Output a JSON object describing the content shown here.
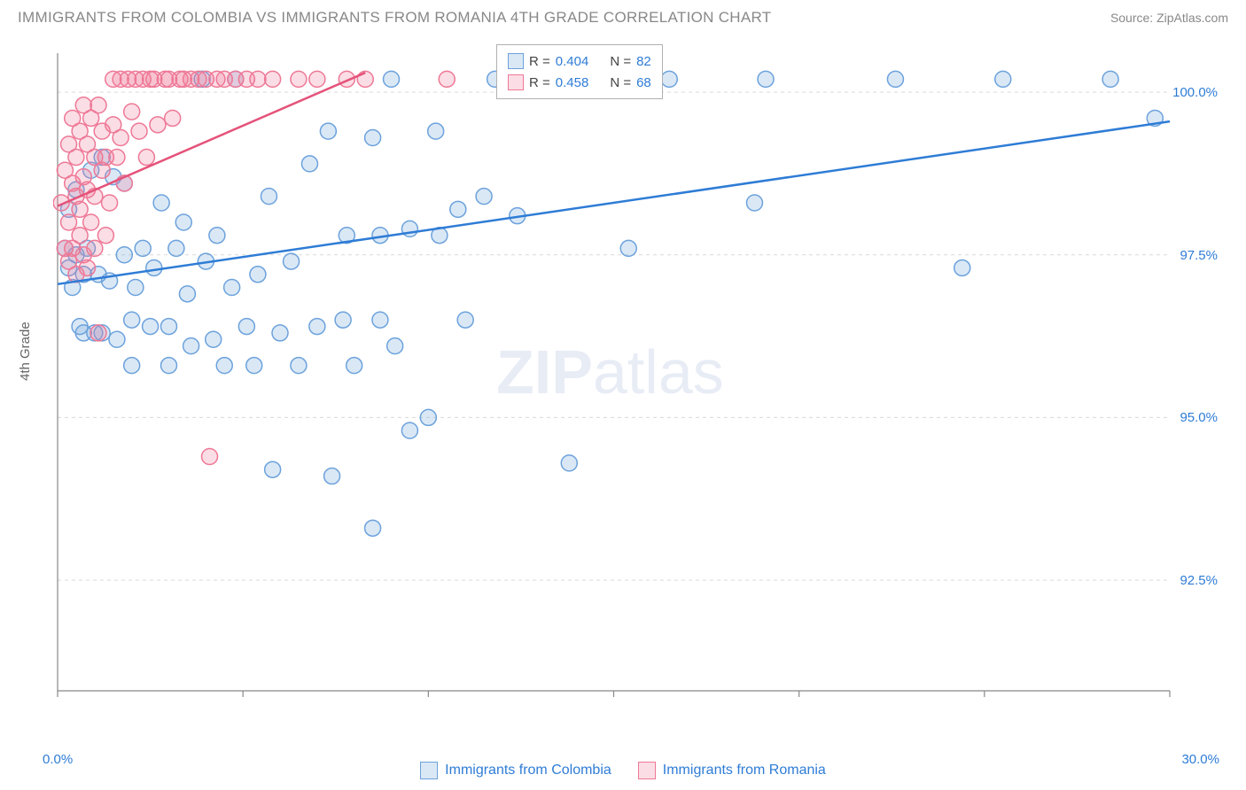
{
  "header": {
    "title": "IMMIGRANTS FROM COLOMBIA VS IMMIGRANTS FROM ROMANIA 4TH GRADE CORRELATION CHART",
    "source": "Source: ZipAtlas.com"
  },
  "chart": {
    "type": "scatter",
    "ylabel": "4th Grade",
    "xlim": [
      0,
      30
    ],
    "ylim": [
      90.8,
      100.6
    ],
    "x_axis_labels": {
      "start": "0.0%",
      "end": "30.0%"
    },
    "y_ticks": [
      {
        "v": 92.5,
        "label": "92.5%"
      },
      {
        "v": 95.0,
        "label": "95.0%"
      },
      {
        "v": 97.5,
        "label": "97.5%"
      },
      {
        "v": 100.0,
        "label": "100.0%"
      }
    ],
    "x_tick_positions": [
      0,
      5,
      10,
      15,
      20,
      25,
      30
    ],
    "grid_color": "#d9d9d9",
    "axis_color": "#888888",
    "background_color": "#ffffff",
    "marker_radius": 9,
    "marker_stroke_width": 1.5,
    "line_width": 2.5,
    "series": [
      {
        "name": "Immigrants from Colombia",
        "fill": "rgba(108,162,220,0.25)",
        "stroke": "#6ca2dc",
        "line_color": "#2e7cd6",
        "R": "0.404",
        "N": "82",
        "regression": {
          "x1": 0,
          "y1": 97.05,
          "x2": 30,
          "y2": 99.55
        },
        "points": [
          [
            0.2,
            97.6
          ],
          [
            0.3,
            98.2
          ],
          [
            0.3,
            97.3
          ],
          [
            0.4,
            97.0
          ],
          [
            0.5,
            98.5
          ],
          [
            0.5,
            97.5
          ],
          [
            0.6,
            96.4
          ],
          [
            0.7,
            97.2
          ],
          [
            0.7,
            96.3
          ],
          [
            0.8,
            97.6
          ],
          [
            0.9,
            98.8
          ],
          [
            1.0,
            96.3
          ],
          [
            1.1,
            97.2
          ],
          [
            1.2,
            99.0
          ],
          [
            1.2,
            96.3
          ],
          [
            1.4,
            97.1
          ],
          [
            1.5,
            98.7
          ],
          [
            1.6,
            96.2
          ],
          [
            1.8,
            97.5
          ],
          [
            1.8,
            98.6
          ],
          [
            2.0,
            95.8
          ],
          [
            2.0,
            96.5
          ],
          [
            2.1,
            97.0
          ],
          [
            2.3,
            97.6
          ],
          [
            2.5,
            96.4
          ],
          [
            2.6,
            97.3
          ],
          [
            2.8,
            98.3
          ],
          [
            3.0,
            95.8
          ],
          [
            3.0,
            96.4
          ],
          [
            3.2,
            97.6
          ],
          [
            3.4,
            98.0
          ],
          [
            3.5,
            96.9
          ],
          [
            3.6,
            96.1
          ],
          [
            3.9,
            100.2
          ],
          [
            4.0,
            97.4
          ],
          [
            4.2,
            96.2
          ],
          [
            4.3,
            97.8
          ],
          [
            4.5,
            95.8
          ],
          [
            4.7,
            97.0
          ],
          [
            4.8,
            100.2
          ],
          [
            5.1,
            96.4
          ],
          [
            5.3,
            95.8
          ],
          [
            5.4,
            97.2
          ],
          [
            5.7,
            98.4
          ],
          [
            5.8,
            94.2
          ],
          [
            6.0,
            96.3
          ],
          [
            6.3,
            97.4
          ],
          [
            6.5,
            95.8
          ],
          [
            6.8,
            98.9
          ],
          [
            7.0,
            96.4
          ],
          [
            7.3,
            99.4
          ],
          [
            7.4,
            94.1
          ],
          [
            7.7,
            96.5
          ],
          [
            7.8,
            97.8
          ],
          [
            8.0,
            95.8
          ],
          [
            8.5,
            99.3
          ],
          [
            8.5,
            93.3
          ],
          [
            8.7,
            96.5
          ],
          [
            8.7,
            97.8
          ],
          [
            9.0,
            100.2
          ],
          [
            9.1,
            96.1
          ],
          [
            9.5,
            97.9
          ],
          [
            9.5,
            94.8
          ],
          [
            10.0,
            95.0
          ],
          [
            10.2,
            99.4
          ],
          [
            10.3,
            97.8
          ],
          [
            10.8,
            98.2
          ],
          [
            11.0,
            96.5
          ],
          [
            11.5,
            98.4
          ],
          [
            11.8,
            100.2
          ],
          [
            12.4,
            98.1
          ],
          [
            13.8,
            94.3
          ],
          [
            14.0,
            100.2
          ],
          [
            15.4,
            97.6
          ],
          [
            16.5,
            100.2
          ],
          [
            18.8,
            98.3
          ],
          [
            19.1,
            100.2
          ],
          [
            22.6,
            100.2
          ],
          [
            24.4,
            97.3
          ],
          [
            25.5,
            100.2
          ],
          [
            28.4,
            100.2
          ],
          [
            29.6,
            99.6
          ]
        ]
      },
      {
        "name": "Immigrants from Romania",
        "fill": "rgba(238,120,150,0.25)",
        "stroke": "#ee7896",
        "line_color": "#e5537a",
        "R": "0.458",
        "N": "68",
        "regression": {
          "x1": 0,
          "y1": 98.25,
          "x2": 8.3,
          "y2": 100.3
        },
        "points": [
          [
            0.1,
            98.3
          ],
          [
            0.2,
            97.6
          ],
          [
            0.2,
            98.8
          ],
          [
            0.3,
            97.4
          ],
          [
            0.3,
            99.2
          ],
          [
            0.3,
            98.0
          ],
          [
            0.4,
            97.6
          ],
          [
            0.4,
            98.6
          ],
          [
            0.4,
            99.6
          ],
          [
            0.5,
            97.2
          ],
          [
            0.5,
            98.4
          ],
          [
            0.5,
            99.0
          ],
          [
            0.6,
            97.8
          ],
          [
            0.6,
            99.4
          ],
          [
            0.6,
            98.2
          ],
          [
            0.7,
            99.8
          ],
          [
            0.7,
            97.5
          ],
          [
            0.7,
            98.7
          ],
          [
            0.8,
            99.2
          ],
          [
            0.8,
            97.3
          ],
          [
            0.8,
            98.5
          ],
          [
            0.9,
            99.6
          ],
          [
            0.9,
            98.0
          ],
          [
            1.0,
            99.0
          ],
          [
            1.0,
            97.6
          ],
          [
            1.0,
            98.4
          ],
          [
            1.1,
            99.8
          ],
          [
            1.1,
            96.3
          ],
          [
            1.2,
            98.8
          ],
          [
            1.2,
            99.4
          ],
          [
            1.3,
            97.8
          ],
          [
            1.3,
            99.0
          ],
          [
            1.4,
            98.3
          ],
          [
            1.5,
            100.2
          ],
          [
            1.5,
            99.5
          ],
          [
            1.6,
            99.0
          ],
          [
            1.7,
            100.2
          ],
          [
            1.7,
            99.3
          ],
          [
            1.8,
            98.6
          ],
          [
            1.9,
            100.2
          ],
          [
            2.0,
            99.7
          ],
          [
            2.1,
            100.2
          ],
          [
            2.2,
            99.4
          ],
          [
            2.3,
            100.2
          ],
          [
            2.4,
            99.0
          ],
          [
            2.5,
            100.2
          ],
          [
            2.6,
            100.2
          ],
          [
            2.7,
            99.5
          ],
          [
            2.9,
            100.2
          ],
          [
            3.0,
            100.2
          ],
          [
            3.1,
            99.6
          ],
          [
            3.3,
            100.2
          ],
          [
            3.4,
            100.2
          ],
          [
            3.6,
            100.2
          ],
          [
            3.8,
            100.2
          ],
          [
            4.0,
            100.2
          ],
          [
            4.1,
            94.4
          ],
          [
            4.3,
            100.2
          ],
          [
            4.5,
            100.2
          ],
          [
            4.8,
            100.2
          ],
          [
            5.1,
            100.2
          ],
          [
            5.4,
            100.2
          ],
          [
            5.8,
            100.2
          ],
          [
            6.5,
            100.2
          ],
          [
            7.0,
            100.2
          ],
          [
            7.8,
            100.2
          ],
          [
            8.3,
            100.2
          ],
          [
            10.5,
            100.2
          ]
        ]
      }
    ],
    "legend_box": {
      "r_label": "R =",
      "n_label": "N ="
    },
    "watermark": {
      "text1": "ZIP",
      "text2": "atlas"
    }
  }
}
